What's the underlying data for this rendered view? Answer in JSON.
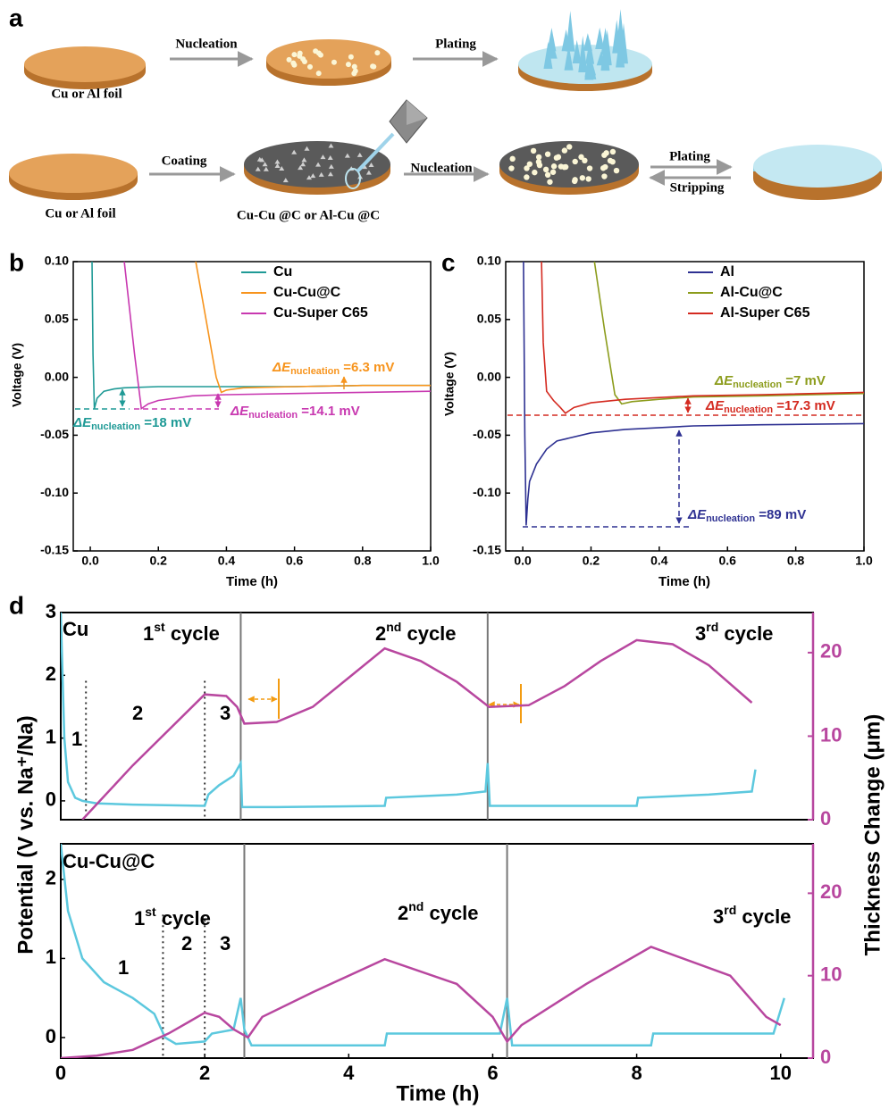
{
  "schematic": {
    "panel": "a",
    "row1": {
      "step1": "Nucleation",
      "step2": "Plating",
      "foil": "Cu or Al foil"
    },
    "row2": {
      "step1": "Coating",
      "step2": "Nucleation",
      "step3": "Plating",
      "step4": "Stripping",
      "foil": "Cu or Al foil",
      "coated": "Cu-Cu @C or Al-Cu @C"
    }
  },
  "chart_data": [
    {
      "type": "line",
      "panel": "b",
      "xlabel": "Time (h)",
      "ylabel": "Voltage (V)",
      "xlim": [
        -0.05,
        1.0
      ],
      "xticks": [
        {
          "value": 0,
          "label": "0.0"
        },
        0.2,
        0.4,
        0.6,
        0.8,
        {
          "value": 1,
          "label": "1.0"
        }
      ],
      "ylim": [
        -0.15,
        0.1
      ],
      "yticks": [
        {
          "value": 0.1,
          "label": "0.10"
        },
        0.05,
        {
          "value": 0,
          "label": "0.00"
        },
        -0.05,
        {
          "value": -0.1,
          "label": "-0.10"
        },
        -0.15
      ],
      "legend": "upper right",
      "series": [
        {
          "name": "Cu",
          "color": "#1f9a96",
          "x": [
            0.005,
            0.008,
            0.012,
            0.02,
            0.04,
            0.07,
            0.1,
            0.2,
            0.4,
            0.6,
            0.8,
            1.0
          ],
          "values": [
            0.1,
            0.02,
            -0.027,
            -0.018,
            -0.012,
            -0.01,
            -0.009,
            -0.008,
            -0.008,
            -0.008,
            -0.007,
            -0.007
          ]
        },
        {
          "name": "Cu-Cu@C",
          "color": "#f7941d",
          "x": [
            0.31,
            0.34,
            0.37,
            0.385,
            0.4,
            0.45,
            0.6,
            0.8,
            1.0
          ],
          "values": [
            0.1,
            0.05,
            0.0,
            -0.013,
            -0.011,
            -0.009,
            -0.008,
            -0.007,
            -0.007
          ]
        },
        {
          "name": "Cu-Super C65",
          "color": "#c838b0",
          "x": [
            0.1,
            0.13,
            0.15,
            0.17,
            0.2,
            0.3,
            0.4,
            0.6,
            0.8,
            1.0
          ],
          "values": [
            0.1,
            0.02,
            -0.027,
            -0.023,
            -0.02,
            -0.016,
            -0.015,
            -0.014,
            -0.013,
            -0.012
          ]
        }
      ],
      "annotations": [
        {
          "kind": "delta",
          "parts": [
            "ΔE",
            "nucleation",
            " =6.3 mV"
          ],
          "color": "#f7941d"
        },
        {
          "kind": "delta",
          "parts": [
            "ΔE",
            "nucleation",
            " =18 mV"
          ],
          "color": "#1f9a96"
        },
        {
          "kind": "delta",
          "parts": [
            "ΔE",
            "nucleation",
            " =14.1 mV"
          ],
          "color": "#c838b0"
        }
      ]
    },
    {
      "type": "line",
      "panel": "c",
      "xlabel": "Time (h)",
      "ylabel": "Voltage (V)",
      "xlim": [
        -0.05,
        1.0
      ],
      "xticks": [
        {
          "value": 0,
          "label": "0.0"
        },
        0.2,
        0.4,
        0.6,
        0.8,
        {
          "value": 1,
          "label": "1.0"
        }
      ],
      "ylim": [
        -0.15,
        0.1
      ],
      "yticks": [
        {
          "value": 0.1,
          "label": "0.10"
        },
        0.05,
        {
          "value": 0,
          "label": "0.00"
        },
        -0.05,
        {
          "value": -0.1,
          "label": "-0.10"
        },
        -0.15
      ],
      "legend": "upper right",
      "series": [
        {
          "name": "Al",
          "color": "#2e3192",
          "x": [
            0.002,
            0.006,
            0.01,
            0.015,
            0.02,
            0.04,
            0.07,
            0.1,
            0.2,
            0.3,
            0.5,
            0.7,
            1.0
          ],
          "values": [
            0.1,
            -0.05,
            -0.128,
            -0.105,
            -0.09,
            -0.075,
            -0.062,
            -0.055,
            -0.048,
            -0.045,
            -0.042,
            -0.041,
            -0.04
          ]
        },
        {
          "name": "Al-Cu@C",
          "color": "#8c9c1c",
          "x": [
            0.21,
            0.24,
            0.27,
            0.29,
            0.32,
            0.4,
            0.5,
            0.7,
            1.0
          ],
          "values": [
            0.1,
            0.04,
            -0.015,
            -0.023,
            -0.021,
            -0.019,
            -0.017,
            -0.016,
            -0.014
          ]
        },
        {
          "name": "Al-Super C65",
          "color": "#d42a20",
          "x": [
            0.055,
            0.06,
            0.07,
            0.09,
            0.11,
            0.125,
            0.15,
            0.2,
            0.3,
            0.5,
            0.7,
            1.0
          ],
          "values": [
            0.1,
            0.03,
            -0.012,
            -0.02,
            -0.026,
            -0.031,
            -0.026,
            -0.022,
            -0.019,
            -0.016,
            -0.015,
            -0.013
          ]
        }
      ],
      "annotations": [
        {
          "kind": "delta",
          "parts": [
            "ΔE",
            "nucleation",
            " =7 mV"
          ],
          "color": "#8c9c1c"
        },
        {
          "kind": "delta",
          "parts": [
            "ΔE",
            "nucleation",
            " =17.3 mV"
          ],
          "color": "#d42a20"
        },
        {
          "kind": "delta",
          "parts": [
            "ΔE",
            "nucleation",
            " =89 mV"
          ],
          "color": "#2e3192"
        }
      ]
    },
    {
      "type": "line",
      "panel": "d",
      "label": "Cu",
      "ylabel": "Potential (V vs. Na⁺/Na)",
      "y2label": "Thickness Change (μm)",
      "xlim": [
        0,
        10.45
      ],
      "ylim": [
        -0.3,
        3
      ],
      "yticks": [
        0,
        1,
        2,
        3
      ],
      "y2lim": [
        0,
        24.8
      ],
      "y2ticks": [
        0,
        10,
        20
      ],
      "dividers": [
        2.5,
        5.93
      ],
      "phase_lines": [
        0.35,
        2.0
      ],
      "series": [
        {
          "color": "#5cc8de",
          "x": [
            0,
            0.05,
            0.1,
            0.2,
            0.3,
            0.5,
            1,
            2,
            2.05,
            2.2,
            2.4,
            2.5,
            2.52,
            3,
            4.5,
            4.52,
            5.5,
            5.9,
            5.93,
            5.96,
            7,
            8,
            8.02,
            9,
            9.6,
            9.65
          ],
          "values": [
            3,
            1,
            0.3,
            0.05,
            0,
            -0.04,
            -0.06,
            -0.08,
            0.1,
            0.25,
            0.4,
            0.6,
            -0.1,
            -0.1,
            -0.08,
            0.05,
            0.1,
            0.15,
            0.6,
            -0.08,
            -0.08,
            -0.08,
            0.05,
            0.1,
            0.15,
            0.5
          ]
        },
        {
          "color": "#b8479f",
          "axis": "y2",
          "x": [
            0.3,
            1,
            2,
            2.3,
            2.45,
            2.55,
            3,
            3.5,
            4,
            4.5,
            5,
            5.5,
            5.95,
            6.5,
            7,
            7.5,
            8,
            8.5,
            9,
            9.6
          ],
          "values": [
            0,
            6.5,
            15,
            14.8,
            13.5,
            11.5,
            11.7,
            13.5,
            17,
            20.5,
            19,
            16.5,
            13.5,
            13.7,
            16,
            19,
            21.5,
            21,
            18.5,
            14
          ]
        }
      ],
      "annotations": [
        {
          "kind": "plain",
          "parts": [
            "1"
          ]
        },
        {
          "kind": "plain",
          "parts": [
            "2"
          ]
        },
        {
          "kind": "plain",
          "parts": [
            "3"
          ]
        },
        {
          "kind": "cycle",
          "parts": [
            "1",
            "st",
            " cycle"
          ]
        },
        {
          "kind": "cycle",
          "parts": [
            "2",
            "nd",
            " cycle"
          ]
        },
        {
          "kind": "cycle",
          "parts": [
            "3",
            "rd",
            " cycle"
          ]
        }
      ]
    },
    {
      "type": "line",
      "label": "Cu-Cu@C",
      "xlabel": "Time (h)",
      "xlim": [
        0,
        10.45
      ],
      "xticks": [
        0,
        2,
        4,
        6,
        8,
        10
      ],
      "ylim": [
        -0.26,
        2.45
      ],
      "yticks": [
        0,
        1,
        2
      ],
      "y2lim": [
        0,
        26
      ],
      "y2ticks": [
        0,
        10,
        20
      ],
      "dividers": [
        2.55,
        6.2
      ],
      "phase_lines": [
        1.42,
        2.0
      ],
      "series": [
        {
          "color": "#5cc8de",
          "x": [
            0,
            0.1,
            0.3,
            0.6,
            1,
            1.3,
            1.45,
            1.6,
            2,
            2.1,
            2.4,
            2.5,
            2.55,
            2.65,
            4.5,
            4.53,
            6.1,
            6.2,
            6.27,
            8.2,
            8.23,
            9.9,
            10.05
          ],
          "values": [
            2.45,
            1.6,
            1,
            0.7,
            0.5,
            0.3,
            0,
            -0.08,
            -0.05,
            0.05,
            0.1,
            0.5,
            0.1,
            -0.1,
            -0.1,
            0.05,
            0.05,
            0.5,
            -0.1,
            -0.1,
            0.05,
            0.05,
            0.5
          ]
        },
        {
          "color": "#b8479f",
          "axis": "y2",
          "x": [
            0,
            0.5,
            1,
            1.5,
            1.8,
            2,
            2.2,
            2.4,
            2.6,
            2.8,
            3.5,
            4.5,
            5.5,
            6,
            6.2,
            6.4,
            7.3,
            8.2,
            9.3,
            9.8,
            10
          ],
          "values": [
            0,
            0.3,
            1,
            3,
            4.5,
            5.5,
            5,
            3.5,
            2.5,
            5,
            8,
            12,
            9,
            5,
            2,
            4,
            9,
            13.5,
            10,
            5,
            4
          ]
        }
      ],
      "annotations": [
        {
          "kind": "plain",
          "parts": [
            "1"
          ]
        },
        {
          "kind": "plain",
          "parts": [
            "2"
          ]
        },
        {
          "kind": "plain",
          "parts": [
            "3"
          ]
        },
        {
          "kind": "cycle",
          "parts": [
            "1",
            "st",
            " cycle"
          ]
        },
        {
          "kind": "cycle",
          "parts": [
            "2",
            "nd",
            " cycle"
          ]
        },
        {
          "kind": "cycle",
          "parts": [
            "3",
            "rd",
            " cycle"
          ]
        }
      ]
    }
  ]
}
